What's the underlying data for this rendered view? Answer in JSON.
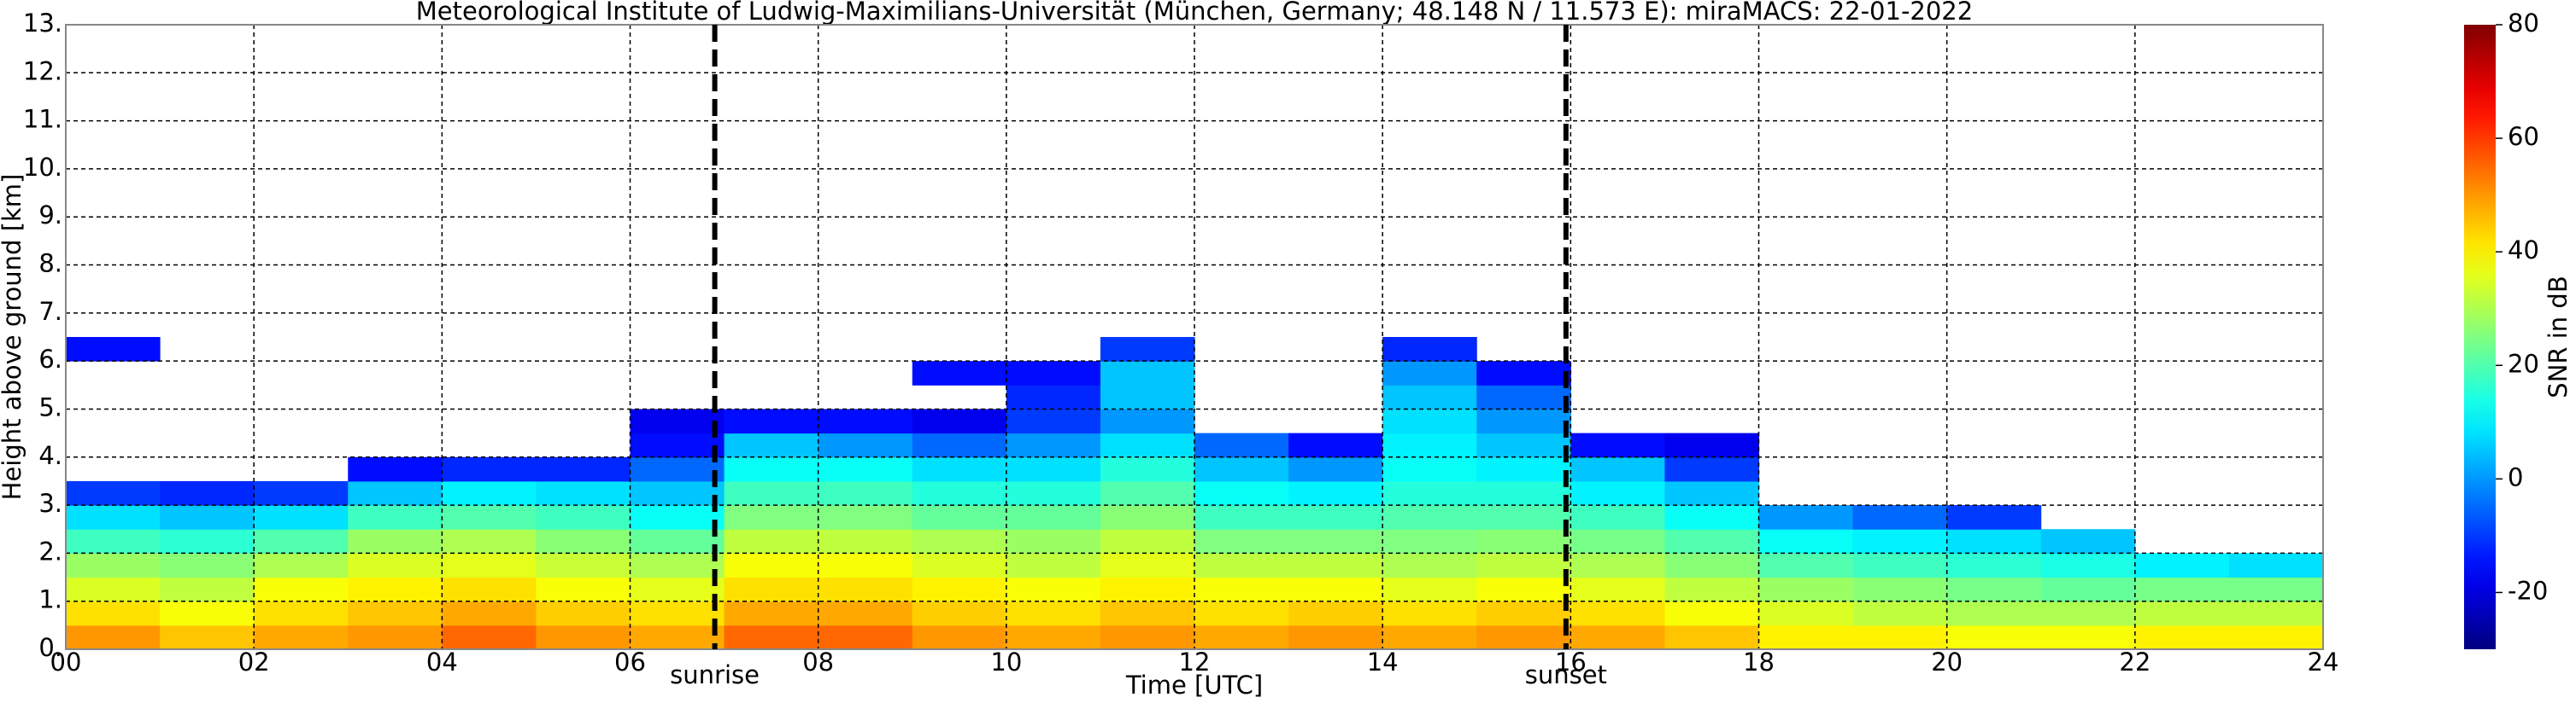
{
  "chart_data": {
    "type": "heatmap",
    "title": "Meteorological Institute of Ludwig-Maximilians-Universität (München, Germany; 48.148 N / 11.573 E):    miraMACS: 22-01-2022",
    "xlabel": "Time [UTC]",
    "ylabel": "Height above ground [km]",
    "colorbar_label": "SNR in dB",
    "colormap": "jet",
    "clim": [
      -30,
      80
    ],
    "cticks": [
      -20,
      0,
      20,
      40,
      60,
      80
    ],
    "xlim": [
      0,
      24
    ],
    "ylim": [
      0,
      13
    ],
    "grid": true,
    "xticks": [
      {
        "value": 0,
        "label": "00"
      },
      {
        "value": 2,
        "label": "02"
      },
      {
        "value": 4,
        "label": "04"
      },
      {
        "value": 6,
        "label": "06"
      },
      {
        "value": 8,
        "label": "08"
      },
      {
        "value": 10,
        "label": "10"
      },
      {
        "value": 12,
        "label": "12"
      },
      {
        "value": 14,
        "label": "14"
      },
      {
        "value": 16,
        "label": "16"
      },
      {
        "value": 18,
        "label": "18"
      },
      {
        "value": 20,
        "label": "20"
      },
      {
        "value": 22,
        "label": "22"
      },
      {
        "value": 24,
        "label": "24"
      }
    ],
    "yticks": [
      {
        "value": 0,
        "label": "0."
      },
      {
        "value": 1,
        "label": "1."
      },
      {
        "value": 2,
        "label": "2."
      },
      {
        "value": 3,
        "label": "3."
      },
      {
        "value": 4,
        "label": "4."
      },
      {
        "value": 5,
        "label": "5."
      },
      {
        "value": 6,
        "label": "6."
      },
      {
        "value": 7,
        "label": "7."
      },
      {
        "value": 8,
        "label": "8."
      },
      {
        "value": 9,
        "label": "9."
      },
      {
        "value": 10,
        "label": "10."
      },
      {
        "value": 11,
        "label": "11."
      },
      {
        "value": 12,
        "label": "12."
      },
      {
        "value": 13,
        "label": "13."
      }
    ],
    "annotations": [
      {
        "text": "sunrise",
        "x": 6.9
      },
      {
        "text": "sunset",
        "x": 15.95
      }
    ],
    "xbins": [
      0,
      1,
      2,
      3,
      4,
      5,
      6,
      7,
      8,
      9,
      10,
      11,
      12,
      13,
      14,
      15,
      16,
      17,
      18,
      19,
      20,
      21,
      22,
      23,
      24
    ],
    "ybins": [
      0,
      0.5,
      1,
      1.5,
      2,
      2.5,
      3,
      3.5,
      4,
      4.5,
      5,
      5.5,
      6,
      6.5
    ],
    "z": [
      [
        50,
        42,
        35,
        28,
        18,
        8,
        -10,
        null,
        null,
        null,
        null,
        null,
        -15
      ],
      [
        45,
        38,
        32,
        26,
        16,
        5,
        -12,
        null,
        null,
        null,
        null,
        null,
        null
      ],
      [
        48,
        42,
        38,
        30,
        20,
        8,
        -10,
        null,
        null,
        null,
        null,
        null,
        null
      ],
      [
        50,
        45,
        40,
        35,
        28,
        18,
        5,
        -15,
        null,
        null,
        null,
        null,
        null
      ],
      [
        55,
        48,
        42,
        36,
        30,
        20,
        10,
        -12,
        null,
        null,
        null,
        null,
        null
      ],
      [
        50,
        44,
        38,
        33,
        26,
        18,
        8,
        -12,
        null,
        null,
        null,
        null,
        null
      ],
      [
        48,
        42,
        36,
        30,
        22,
        12,
        5,
        -5,
        -15,
        -18,
        null,
        null,
        null
      ],
      [
        55,
        48,
        42,
        38,
        32,
        25,
        18,
        12,
        5,
        -15,
        null,
        null,
        null
      ],
      [
        55,
        48,
        42,
        38,
        32,
        25,
        18,
        12,
        0,
        -15,
        null,
        null,
        null
      ],
      [
        50,
        44,
        40,
        35,
        30,
        22,
        15,
        8,
        -5,
        -18,
        null,
        -15,
        null
      ],
      [
        48,
        42,
        38,
        32,
        28,
        22,
        15,
        8,
        0,
        -10,
        -12,
        -15,
        null
      ],
      [
        50,
        45,
        40,
        36,
        32,
        26,
        20,
        15,
        8,
        0,
        5,
        5,
        -10
      ],
      [
        48,
        42,
        38,
        32,
        25,
        18,
        12,
        5,
        -5,
        null,
        null,
        null,
        null
      ],
      [
        50,
        44,
        38,
        32,
        25,
        18,
        10,
        0,
        -15,
        null,
        null,
        null,
        null
      ],
      [
        48,
        42,
        36,
        30,
        25,
        20,
        15,
        12,
        10,
        8,
        5,
        0,
        -12
      ],
      [
        50,
        44,
        38,
        32,
        26,
        20,
        15,
        10,
        5,
        0,
        -5,
        -15,
        null
      ],
      [
        48,
        42,
        36,
        30,
        24,
        18,
        10,
        5,
        -15,
        null,
        null,
        null,
        null
      ],
      [
        45,
        38,
        32,
        26,
        20,
        12,
        5,
        -10,
        -18,
        null,
        null,
        null,
        null
      ],
      [
        40,
        35,
        28,
        20,
        12,
        0,
        null,
        null,
        null,
        null,
        null,
        null,
        null
      ],
      [
        40,
        32,
        26,
        18,
        10,
        -5,
        null,
        null,
        null,
        null,
        null,
        null,
        null
      ],
      [
        38,
        30,
        24,
        16,
        8,
        -10,
        null,
        null,
        null,
        null,
        null,
        null,
        null
      ],
      [
        38,
        30,
        22,
        14,
        5,
        null,
        null,
        null,
        null,
        null,
        null,
        null,
        null
      ],
      [
        40,
        32,
        24,
        10,
        null,
        null,
        null,
        null,
        null,
        null,
        null,
        null,
        null
      ],
      [
        40,
        32,
        24,
        8,
        null,
        null,
        null,
        null,
        null,
        null,
        null,
        null,
        null
      ]
    ]
  }
}
